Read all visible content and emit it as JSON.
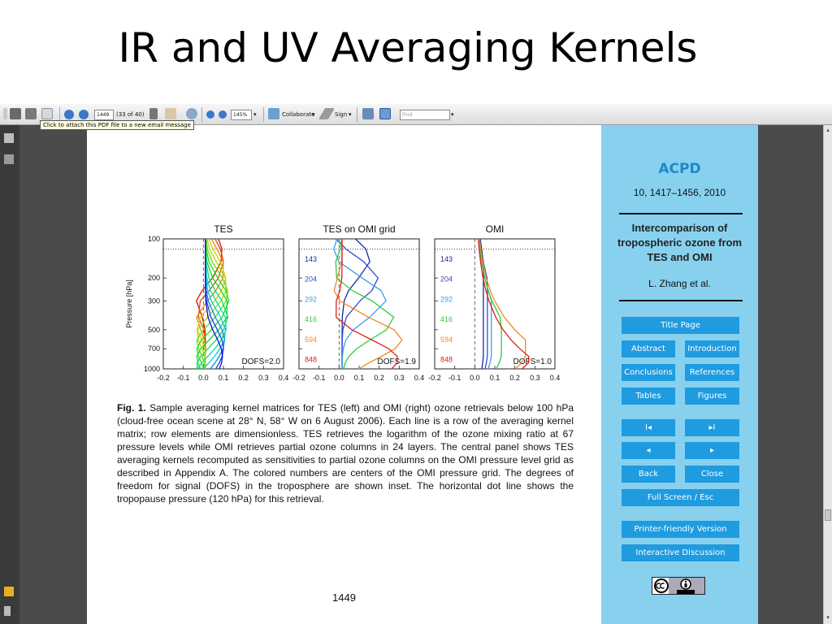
{
  "slide": {
    "title": "IR and UV Averaging Kernels"
  },
  "toolbar": {
    "page_input": "1449",
    "page_count": "(33 of 40)",
    "zoom": "145%",
    "collaborate": "Collaborate",
    "sign": "Sign",
    "find_placeholder": "Find",
    "tooltip": "Click to attach this PDF file to a new email message"
  },
  "document": {
    "caption_label": "Fig. 1.",
    "caption_text": "Sample averaging kernel matrices for TES (left) and OMI (right) ozone retrievals below 100 hPa (cloud-free ocean scene at 28° N, 58° W on 6 August 2006). Each line is a row of the averaging kernel matrix; row elements are dimensionless. TES retrieves the logarithm of the ozone mixing ratio at 67 pressure levels while OMI retrieves partial ozone columns in 24 layers. The central panel shows TES averaging kernels recomputed as sensitivities to partial ozone columns on the OMI pressure level grid as described in Appendix A. The colored numbers are centers of the OMI pressure grid. The degrees of freedom for signal (DOFS) in the troposphere are shown inset. The horizontal dot line shows the tropopause pressure (120 hPa) for this retrieval.",
    "page_number": "1449"
  },
  "sidebar": {
    "journal": "ACPD",
    "citation": "10, 1417–1456, 2010",
    "paper_title": "Intercomparison of tropospheric ozone from TES and OMI",
    "authors": "L. Zhang et al.",
    "buttons": {
      "title_page": "Title Page",
      "abstract": "Abstract",
      "introduction": "Introduction",
      "conclusions": "Conclusions",
      "references": "References",
      "tables": "Tables",
      "figures": "Figures",
      "first": "I◂",
      "last": "▸I",
      "prev": "◂",
      "next": "▸",
      "back": "Back",
      "close": "Close",
      "fullscreen": "Full Screen / Esc",
      "printer": "Printer-friendly Version",
      "discussion": "Interactive Discussion"
    }
  },
  "chart_data": [
    {
      "type": "line",
      "title": "TES",
      "ylabel": "Pressure [hPa]",
      "yticks": [
        "100",
        "200",
        "300",
        "500",
        "700",
        "1000"
      ],
      "xticks": [
        "-0.2",
        "-0.1",
        "0.0",
        "0.1",
        "0.2",
        "0.3",
        "0.4"
      ],
      "xlim": [
        -0.2,
        0.4
      ],
      "ylim": [
        1000,
        100
      ],
      "annotation": "DOFS=2.0",
      "tropopause_hPa": 120
    },
    {
      "type": "line",
      "title": "TES on OMI grid",
      "xticks": [
        "-0.2",
        "-0.1",
        "0.0",
        "0.1",
        "0.2",
        "0.3",
        "0.4"
      ],
      "xlim": [
        -0.2,
        0.4
      ],
      "ylim": [
        1000,
        100
      ],
      "levels": [
        "143",
        "204",
        "292",
        "416",
        "594",
        "848"
      ],
      "level_colors": [
        "#1a2a9c",
        "#2e4ad8",
        "#3aa0e8",
        "#2ecc40",
        "#f08a1c",
        "#e02020"
      ],
      "annotation": "DOFS=1.9",
      "tropopause_hPa": 120
    },
    {
      "type": "line",
      "title": "OMI",
      "xticks": [
        "-0.2",
        "-0.1",
        "0.0",
        "0.1",
        "0.2",
        "0.3",
        "0.4"
      ],
      "xlim": [
        -0.2,
        0.4
      ],
      "ylim": [
        1000,
        100
      ],
      "levels": [
        "143",
        "204",
        "292",
        "416",
        "594",
        "848"
      ],
      "level_colors": [
        "#1a2a9c",
        "#2e4ad8",
        "#3aa0e8",
        "#2ecc40",
        "#f08a1c",
        "#e02020"
      ],
      "annotation": "DOFS=1.0",
      "tropopause_hPa": 120
    }
  ]
}
